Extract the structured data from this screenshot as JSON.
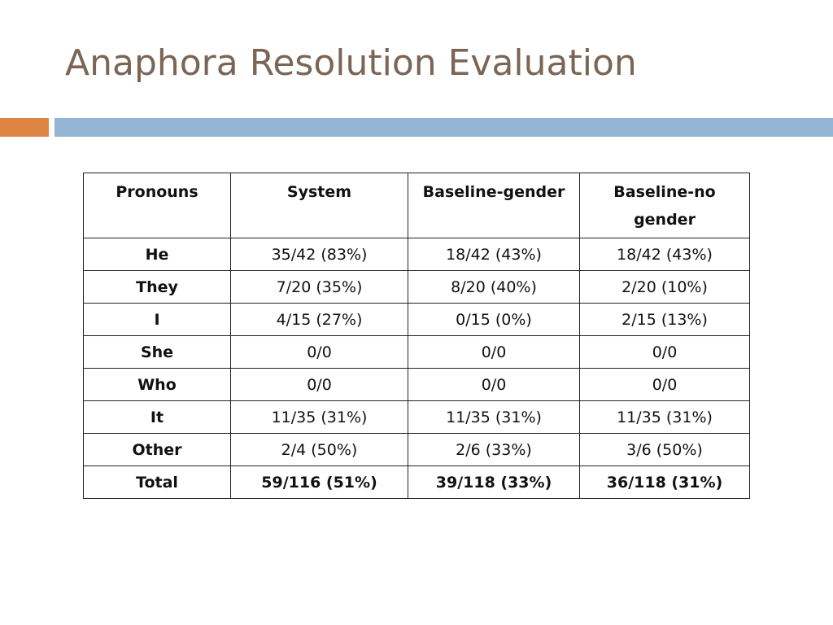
{
  "slide": {
    "title": "Anaphora Resolution Evaluation"
  },
  "colors": {
    "title": "#7b6655",
    "accent_orange": "#de8544",
    "accent_blue": "#93b6d4"
  },
  "table": {
    "headers": [
      "Pronouns",
      "System",
      "Baseline-gender",
      "Baseline-no gender"
    ],
    "rows": [
      {
        "label": "He",
        "cells": [
          "35/42 (83%)",
          "18/42 (43%)",
          "18/42 (43%)"
        ]
      },
      {
        "label": "They",
        "cells": [
          "7/20 (35%)",
          "8/20 (40%)",
          "2/20 (10%)"
        ]
      },
      {
        "label": "I",
        "cells": [
          "4/15 (27%)",
          "0/15 (0%)",
          "2/15 (13%)"
        ]
      },
      {
        "label": "She",
        "cells": [
          "0/0",
          "0/0",
          "0/0"
        ]
      },
      {
        "label": "Who",
        "cells": [
          "0/0",
          "0/0",
          "0/0"
        ]
      },
      {
        "label": "It",
        "cells": [
          "11/35 (31%)",
          "11/35 (31%)",
          "11/35 (31%)"
        ]
      },
      {
        "label": "Other",
        "cells": [
          "2/4 (50%)",
          "2/6 (33%)",
          "3/6 (50%)"
        ]
      },
      {
        "label": "Total",
        "cells": [
          "59/116 (51%)",
          "39/118 (33%)",
          "36/118 (31%)"
        ]
      }
    ]
  }
}
